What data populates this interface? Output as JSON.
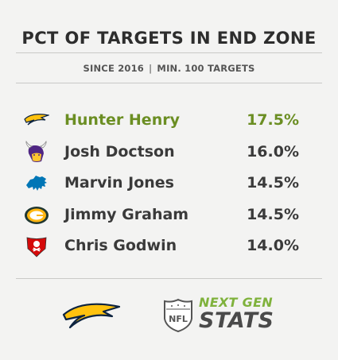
{
  "chart_data": {
    "type": "table",
    "title": "PCT OF TARGETS IN END ZONE",
    "subtitle_parts": [
      "SINCE 2016",
      "MIN. 100 TARGETS"
    ],
    "subtitle_separator": "|",
    "rows": [
      {
        "player": "Hunter Henry",
        "pct": "17.5%",
        "value": 17.5,
        "team_icon": "chargers-bolt-icon",
        "highlight": true
      },
      {
        "player": "Josh Doctson",
        "pct": "16.0%",
        "value": 16.0,
        "team_icon": "vikings-helmet-icon",
        "highlight": false
      },
      {
        "player": "Marvin Jones",
        "pct": "14.5%",
        "value": 14.5,
        "team_icon": "lions-icon",
        "highlight": false
      },
      {
        "player": "Jimmy Graham",
        "pct": "14.5%",
        "value": 14.5,
        "team_icon": "packers-g-icon",
        "highlight": false
      },
      {
        "player": "Chris Godwin",
        "pct": "14.0%",
        "value": 14.0,
        "team_icon": "buccaneers-flag-icon",
        "highlight": false
      }
    ]
  },
  "footer": {
    "team_logo_icon": "chargers-bolt-logo",
    "nfl_shield_icon": "nfl-shield-icon",
    "brand_line1": "NEXT GEN",
    "brand_line2": "STATS"
  },
  "colors": {
    "background": "#f3f3f2",
    "highlight": "#6b8e23",
    "text": "#3a3a3a",
    "chargers_gold": "#ffc20e",
    "chargers_navy": "#0c2340",
    "vikings_purple": "#4f2683",
    "lions_blue": "#0076b6",
    "packers_green": "#203731",
    "packers_gold": "#ffb612",
    "bucs_red": "#d50a0a",
    "ngs_green": "#7fb23c"
  }
}
